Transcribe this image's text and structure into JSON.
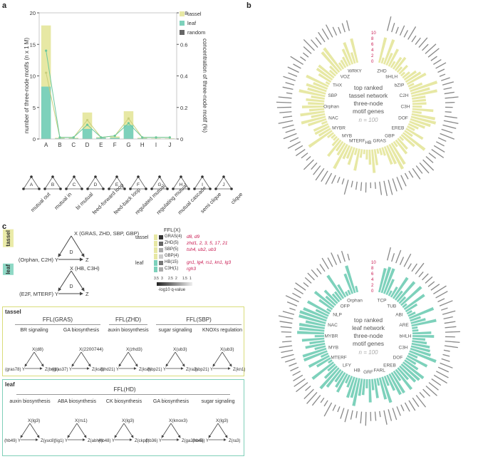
{
  "panels": {
    "a": "a",
    "b": "b",
    "c": "c"
  },
  "colors": {
    "tassel": "#e7e8a4",
    "leaf": "#7dd1bb",
    "random": "#666666",
    "red": "#c8174f",
    "line": "#6cc89d"
  },
  "chart_data": {
    "type": "bar",
    "categories": [
      "A",
      "B",
      "C",
      "D",
      "E",
      "F",
      "G",
      "H",
      "I",
      "J"
    ],
    "series": [
      {
        "name": "tassel",
        "values": [
          18,
          0.2,
          0.2,
          4.2,
          0.3,
          0.4,
          4.4,
          0.2,
          0.1,
          0.1
        ]
      },
      {
        "name": "leaf",
        "values": [
          8.3,
          0.1,
          0.1,
          1.6,
          0.2,
          0.2,
          2.2,
          0.1,
          0.05,
          0.05
        ]
      },
      {
        "name": "random",
        "values": [
          0.1,
          0.05,
          0.05,
          0.1,
          0.05,
          0.05,
          0.1,
          0.05,
          0.02,
          0.02
        ]
      }
    ],
    "concentration_tassel": [
      0.42,
      0.01,
      0.01,
      0.12,
      0.01,
      0.02,
      0.13,
      0.01,
      0.01,
      0.01
    ],
    "concentration_leaf": [
      0.56,
      0.01,
      0.01,
      0.09,
      0.01,
      0.02,
      0.1,
      0.01,
      0.01,
      0.01
    ],
    "ylabel": "number of three-node motifs (n x 1 M)",
    "y2label": "concentration of three-node motif (%)",
    "ylim": [
      0,
      20
    ],
    "y2lim": [
      0,
      0.8
    ],
    "yticks": [
      "0",
      "5",
      "10",
      "15",
      "20"
    ],
    "y2ticks": [
      "0",
      "0.2",
      "0.4",
      "0.6",
      "0.8"
    ],
    "legend": [
      "tassel",
      "leaf",
      "random"
    ]
  },
  "motif_names": [
    "mutual out",
    "mutual in",
    "bi mutual",
    "feed-forward loop",
    "feed-back loop",
    "regulated mutual",
    "regulating mutual",
    "mutual cascade",
    "semi clique",
    "clique"
  ],
  "motif_letters": [
    "A",
    "B",
    "C",
    "D",
    "E",
    "F",
    "G",
    "H",
    "I",
    "J"
  ],
  "circos_tassel": {
    "center": [
      "top ranked",
      "tassel network",
      "three-node",
      "motif genes"
    ],
    "n": "n = 100",
    "ticks": [
      "10",
      "8",
      "6",
      "4",
      "2",
      "0"
    ],
    "families": [
      "ZHD",
      "bHLH",
      "bZIP",
      "C2H",
      "C3H",
      "DOF",
      "EREB",
      "GBP",
      "GRAS",
      "HB",
      "MTERF",
      "MYB",
      "MYBR",
      "NAC",
      "Orphan",
      "SBP",
      "THX",
      "VOZ",
      "WRKY"
    ]
  },
  "circos_leaf": {
    "center": [
      "top ranked",
      "leaf network",
      "three-node",
      "motif genes"
    ],
    "n": "n = 100",
    "ticks": [
      "10",
      "8",
      "6",
      "4",
      "2",
      "0"
    ],
    "families": [
      "TCP",
      "TUB",
      "ABI",
      "ARE",
      "bHLH",
      "C3H",
      "DOF",
      "EREB",
      "FARL",
      "GRF",
      "HB",
      "LFY",
      "MTERF",
      "MYB",
      "MYBR",
      "NAC",
      "NLP",
      "OFP",
      "Orphan"
    ]
  },
  "panel_c": {
    "tassel_label": "tassel",
    "leaf_label": "leaf",
    "tassel_motif": {
      "x": "X (GRAS, ZHD, SBP, GBP)",
      "d": "D",
      "y": "(Orphan, C2H) Y",
      "z": "Z"
    },
    "leaf_motif": {
      "x": "X (HB, C3H)",
      "d": "D",
      "y": "(E2F, MTERF) Y",
      "z": "Z"
    },
    "ffl_header": "FFL(X)",
    "legend_rows": [
      {
        "group": "tassel",
        "key": "GRAS(4)",
        "genes": "d8, d9"
      },
      {
        "group": "",
        "key": "ZHD(5)",
        "genes": "zhd1, 2, 3, 5, 17, 21"
      },
      {
        "group": "",
        "key": "SBP(5)",
        "genes": "tsh4, ub2, ub3"
      },
      {
        "group": "",
        "key": "GBP(4)",
        "genes": ""
      },
      {
        "group": "leaf",
        "key": "HB(15)",
        "genes": "gn1, lg4, rs1, kn1, lg3"
      },
      {
        "group": "",
        "key": "C3H(1)",
        "genes": "rgh3"
      }
    ],
    "scale_label": "-log10 q-value",
    "scale_ticks": [
      "3.5",
      "3",
      "2.5",
      "2",
      "1.5",
      "1"
    ],
    "tassel_box": {
      "label": "tassel",
      "groups": [
        {
          "title": "FFL(GRAS)",
          "cats": [
            {
              "name": "BR signaling",
              "x": "X(d8)",
              "y": "(gras78) Y",
              "z": "Z(bril1)"
            },
            {
              "name": "GA biosynthesis",
              "x": "X(2200744)",
              "y": "(gras37) Y",
              "z": "Z(ks8)"
            }
          ]
        },
        {
          "title": "FFL(ZHD)",
          "cats": [
            {
              "name": "auxin biosynthesis",
              "x": "X(zhd3)",
              "y": "(zhd21) Y",
              "z": "Z(ks8)"
            }
          ]
        },
        {
          "title": "FFL(SBP)",
          "cats": [
            {
              "name": "sugar signaling",
              "x": "X(ub3)",
              "y": "(sbp21) Y",
              "z": "Z(ra3)"
            },
            {
              "name": "KNOXs regulation",
              "x": "X(ub3)",
              "y": "(sbp21) Y",
              "z": "Z(kn1)"
            }
          ]
        }
      ]
    },
    "leaf_box": {
      "label": "leaf",
      "title": "FFL(HD)",
      "cats": [
        {
          "name": "auxin biosynthesis",
          "x": "X(lg3)",
          "y": "(hb49) Y",
          "z": "Z(yuc8)"
        },
        {
          "name": "ABA biosynthesis",
          "x": "X(rs1)",
          "y": "(lig1) Y",
          "z": "Z(abh4)"
        },
        {
          "name": "CK biosynthesis",
          "x": "X(lg3)",
          "y": "(hb48) Y",
          "z": "Z(ckp1)"
        },
        {
          "name": "GA biosynthesis",
          "x": "X(knox3)",
          "y": "(hb36) Y",
          "z": "Z(ga20ox5)"
        },
        {
          "name": "sugar signaling",
          "x": "X(lg3)",
          "y": "(hb48) Y",
          "z": "Z(ra3)"
        }
      ]
    }
  }
}
